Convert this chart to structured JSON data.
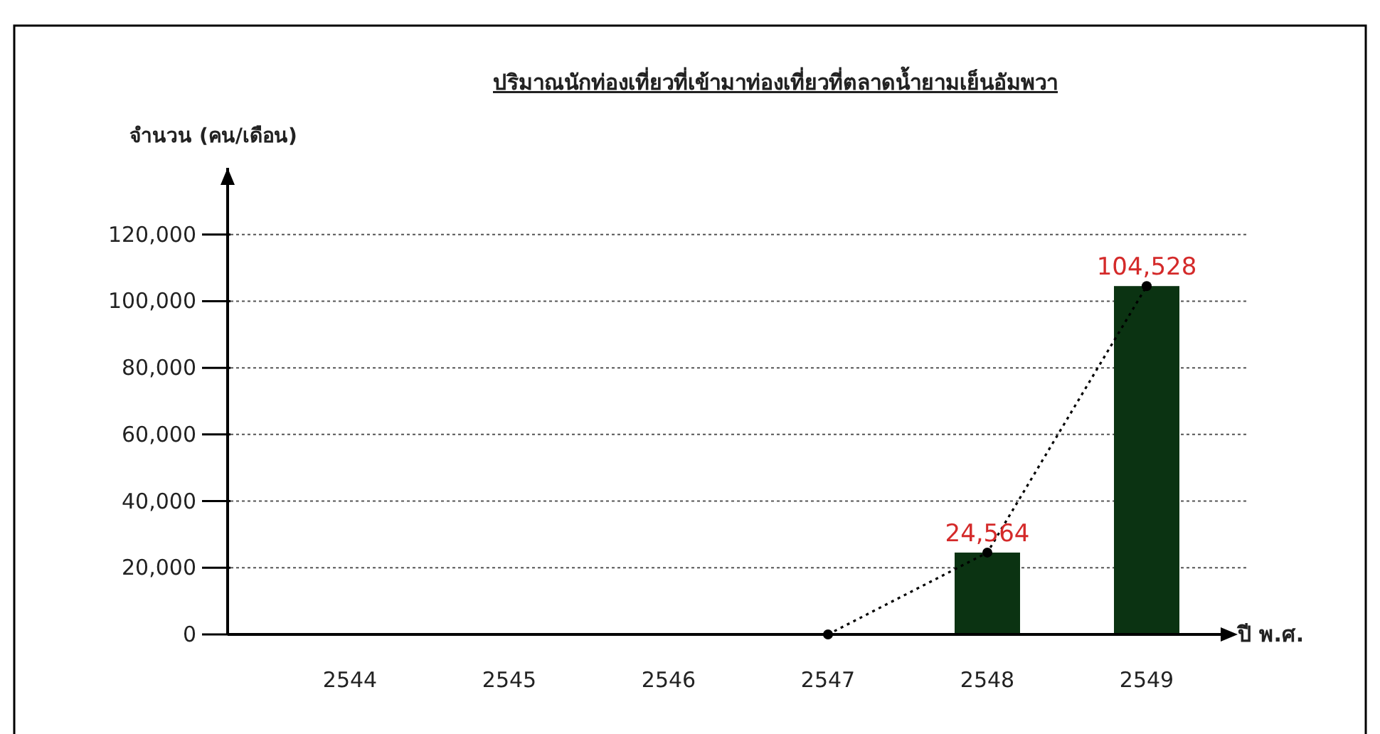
{
  "chart_data": {
    "type": "bar",
    "title": "ปริมาณนักท่องเที่ยวที่เข้ามาท่องเที่ยวที่ตลาดน้ำยามเย็นอัมพวา",
    "ylabel": "จำนวน (คน/เดือน)",
    "xlabel": "ปี พ.ศ.",
    "categories": [
      "2544",
      "2545",
      "2546",
      "2547",
      "2548",
      "2549"
    ],
    "series": [
      {
        "color": "#0b3312",
        "values": [
          null,
          null,
          null,
          null,
          24564,
          104528
        ],
        "value_labels": [
          null,
          null,
          null,
          null,
          "24,564",
          "104,528"
        ]
      },
      {
        "type": "line",
        "color": "#000000",
        "line_style": "dotted",
        "marker": "circle",
        "values": [
          null,
          null,
          null,
          0,
          24564,
          104528
        ]
      }
    ],
    "ylim": [
      0,
      140000
    ],
    "yticks": [
      0,
      {
        "value": 20000,
        "label": "20,000"
      },
      {
        "value": 40000,
        "label": "40,000"
      },
      {
        "value": 60000,
        "label": "60,000"
      },
      {
        "value": 80000,
        "label": "80,000"
      },
      {
        "value": 100000,
        "label": "100,000"
      },
      {
        "value": 120000,
        "label": "120,000"
      }
    ],
    "grid": "y"
  }
}
